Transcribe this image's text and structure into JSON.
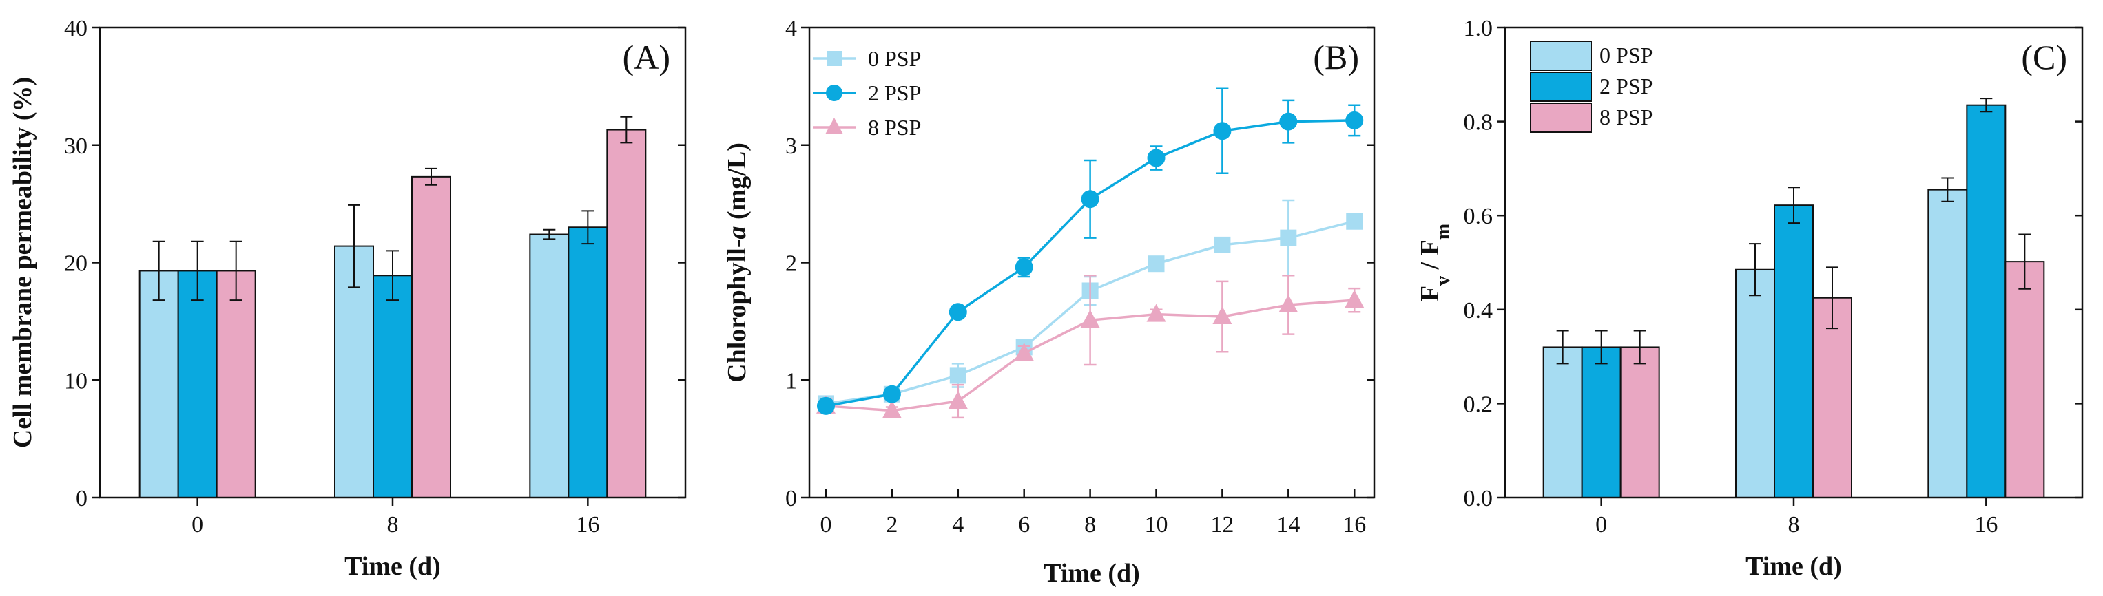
{
  "colors": {
    "psp0": "#a6dcf2",
    "psp2": "#0aa9df",
    "psp8": "#e9a7c2",
    "axis": "#111111",
    "errorbar": "#111111"
  },
  "chart_data": [
    {
      "panel": "(A)",
      "type": "bar",
      "categories": [
        "0",
        "8",
        "16"
      ],
      "series": [
        {
          "name": "0 PSP",
          "values": [
            19.3,
            21.4,
            22.4
          ],
          "errors": [
            2.5,
            3.5,
            0.4
          ]
        },
        {
          "name": "2 PSP",
          "values": [
            19.3,
            18.9,
            23.0
          ],
          "errors": [
            2.5,
            2.1,
            1.4
          ]
        },
        {
          "name": "8 PSP",
          "values": [
            19.3,
            27.3,
            31.3
          ],
          "errors": [
            2.5,
            0.7,
            1.1
          ]
        }
      ],
      "xlabel": "Time (d)",
      "ylabel": "Cell membrane permeability (%)",
      "ylim": [
        0,
        40
      ],
      "yticks": [
        "0",
        "10",
        "20",
        "30",
        "40"
      ],
      "legend": false,
      "grid": false
    },
    {
      "panel": "(B)",
      "type": "line",
      "x": [
        0,
        2,
        4,
        6,
        8,
        10,
        12,
        14,
        16
      ],
      "xticks": [
        "0",
        "2",
        "4",
        "6",
        "8",
        "10",
        "12",
        "14",
        "16"
      ],
      "series": [
        {
          "name": "0 PSP",
          "marker": "square",
          "values": [
            0.8,
            0.88,
            1.04,
            1.28,
            1.76,
            1.99,
            2.15,
            2.21,
            2.35
          ],
          "errors": [
            0.06,
            0.04,
            0.1,
            0.06,
            0.12,
            0.05,
            0.05,
            0.32,
            0.05
          ]
        },
        {
          "name": "2 PSP",
          "marker": "circle",
          "values": [
            0.78,
            0.88,
            1.58,
            1.96,
            2.54,
            2.89,
            3.12,
            3.2,
            3.21
          ],
          "errors": [
            0.05,
            0.04,
            0.05,
            0.08,
            0.33,
            0.1,
            0.36,
            0.18,
            0.13
          ]
        },
        {
          "name": "8 PSP",
          "marker": "triangle",
          "values": [
            0.78,
            0.74,
            0.82,
            1.23,
            1.51,
            1.56,
            1.54,
            1.64,
            1.68
          ],
          "errors": [
            0.06,
            0.03,
            0.14,
            0.06,
            0.38,
            0.04,
            0.3,
            0.25,
            0.1
          ]
        }
      ],
      "xlabel": "Time (d)",
      "ylabel_parts": [
        "Chlorophyll-",
        "a",
        " (mg/L)"
      ],
      "ylim": [
        0,
        4
      ],
      "xlim": [
        -0.5,
        16.6
      ],
      "yticks": [
        "0",
        "1",
        "2",
        "3",
        "4"
      ],
      "legend": "top-left",
      "grid": false
    },
    {
      "panel": "(C)",
      "type": "bar",
      "categories": [
        "0",
        "8",
        "16"
      ],
      "series": [
        {
          "name": "0 PSP",
          "values": [
            0.32,
            0.485,
            0.655
          ],
          "errors": [
            0.035,
            0.055,
            0.025
          ]
        },
        {
          "name": "2 PSP",
          "values": [
            0.32,
            0.622,
            0.835
          ],
          "errors": [
            0.035,
            0.038,
            0.014
          ]
        },
        {
          "name": "8 PSP",
          "values": [
            0.32,
            0.425,
            0.502
          ],
          "errors": [
            0.035,
            0.065,
            0.058
          ]
        }
      ],
      "xlabel": "Time (d)",
      "ylabel_parts": [
        "F",
        "v",
        " / F",
        "m"
      ],
      "ylim": [
        0,
        1
      ],
      "yticks": [
        "0.0",
        "0.2",
        "0.4",
        "0.6",
        "0.8",
        "1.0"
      ],
      "legend": "top-left",
      "grid": false
    }
  ]
}
